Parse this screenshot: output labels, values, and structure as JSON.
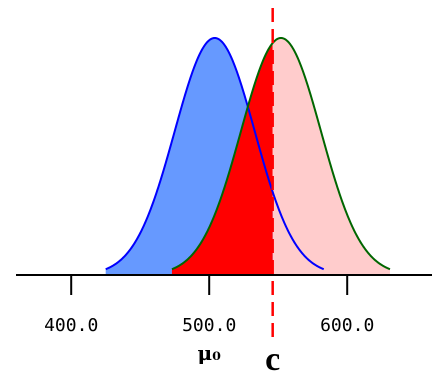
{
  "chart_data": {
    "type": "area",
    "title": "",
    "xlabel": "",
    "ylabel": "",
    "xlim": [
      360,
      660
    ],
    "ticks": [
      400,
      500,
      600
    ],
    "tick_labels": [
      "400.0",
      "500.0",
      "600.0"
    ],
    "mu0_label": "μ₀",
    "mu0_x": 500,
    "critical_label": "c",
    "critical_x": 546,
    "series": [
      {
        "name": "",
        "mean": 504,
        "sd": 29,
        "support": [
          425,
          583
        ],
        "fill_left_of_c": "#6699ff",
        "fill_right_of_c": "#0000ff",
        "outline": "#0000ff"
      },
      {
        "name": "",
        "mean": 552,
        "sd": 29,
        "support": [
          473,
          631
        ],
        "fill_left_of_c": "#ff0000",
        "fill_right_of_c": "#ffcccc",
        "outline": "#006600"
      }
    ],
    "colors": {
      "axis": "#000000",
      "critical_line": "#ff0000"
    },
    "grid": false,
    "legend": "none"
  }
}
